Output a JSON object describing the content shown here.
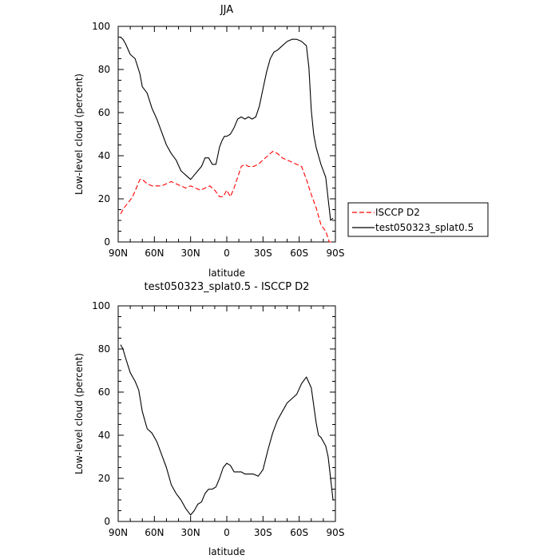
{
  "chart_data": [
    {
      "type": "line",
      "title": "JJA",
      "xlabel": "latitude",
      "ylabel": "Low-level cloud (percent)",
      "x_ticks": [
        "90N",
        "60N",
        "30N",
        "0",
        "30S",
        "60S",
        "90S"
      ],
      "xlim": [
        -90,
        90
      ],
      "ylim": [
        0,
        100
      ],
      "y_ticks": [
        "0",
        "20",
        "40",
        "60",
        "80",
        "100"
      ],
      "legend_position": "right",
      "series": [
        {
          "name": "ISCCP D2",
          "color": "#ff0000",
          "dash": "dashed",
          "x": [
            -88,
            -85,
            -82,
            -78,
            -75,
            -72,
            -70,
            -66,
            -62,
            -58,
            -54,
            -50,
            -46,
            -42,
            -38,
            -34,
            -30,
            -26,
            -22,
            -18,
            -14,
            -10,
            -6,
            -3,
            0,
            3,
            6,
            9,
            12,
            15,
            18,
            22,
            26,
            30,
            34,
            38,
            42,
            46,
            50,
            54,
            58,
            62,
            66,
            70,
            74,
            78,
            82,
            85,
            88
          ],
          "y": [
            13,
            16,
            18,
            21,
            25,
            29,
            29,
            27,
            26,
            26,
            26,
            27,
            28,
            27,
            26,
            25,
            26,
            25,
            24,
            25,
            26,
            24,
            21,
            21,
            24,
            21,
            25,
            30,
            35,
            36,
            35,
            35,
            36,
            38,
            40,
            42,
            41,
            39,
            38,
            37,
            36,
            35,
            29,
            22,
            16,
            8,
            5,
            0,
            0
          ]
        },
        {
          "name": "test050323_splat0.5",
          "color": "#000000",
          "dash": "solid",
          "x": [
            -88,
            -86,
            -84,
            -80,
            -76,
            -72,
            -70,
            -66,
            -62,
            -58,
            -54,
            -50,
            -46,
            -42,
            -38,
            -34,
            -30,
            -27,
            -24,
            -21,
            -18,
            -15,
            -12,
            -9,
            -6,
            -4,
            -2,
            0,
            3,
            6,
            9,
            12,
            15,
            18,
            21,
            24,
            27,
            30,
            33,
            36,
            39,
            42,
            46,
            50,
            54,
            58,
            62,
            66,
            68,
            70,
            72,
            74,
            76,
            78,
            80,
            82,
            84,
            86,
            88
          ],
          "y": [
            95,
            94,
            92,
            87,
            85,
            78,
            72,
            69,
            62,
            57,
            51,
            45,
            41,
            38,
            33,
            31,
            29,
            31,
            33,
            35,
            39,
            39,
            36,
            36,
            44,
            47,
            49,
            49,
            50,
            53,
            57,
            58,
            57,
            58,
            57,
            58,
            63,
            71,
            79,
            85,
            88,
            89,
            91,
            93,
            94,
            94,
            93,
            91,
            81,
            61,
            50,
            44,
            40,
            36,
            33,
            30,
            20,
            10,
            11
          ]
        }
      ]
    },
    {
      "type": "line",
      "title": "test050323_splat0.5 - ISCCP D2",
      "xlabel": "latitude",
      "ylabel": "Low-level cloud (percent)",
      "x_ticks": [
        "90N",
        "60N",
        "30N",
        "0",
        "30S",
        "60S",
        "90S"
      ],
      "xlim": [
        -90,
        90
      ],
      "ylim": [
        0,
        100
      ],
      "y_ticks": [
        "0",
        "20",
        "40",
        "60",
        "80",
        "100"
      ],
      "series": [
        {
          "color": "#000000",
          "dash": "solid",
          "x": [
            -88,
            -86,
            -84,
            -80,
            -76,
            -73,
            -70,
            -66,
            -62,
            -58,
            -54,
            -50,
            -46,
            -42,
            -38,
            -34,
            -30,
            -27,
            -24,
            -21,
            -18,
            -15,
            -12,
            -9,
            -6,
            -3,
            0,
            3,
            6,
            9,
            12,
            15,
            18,
            22,
            26,
            30,
            34,
            38,
            42,
            46,
            50,
            54,
            58,
            62,
            66,
            70,
            72,
            74,
            76,
            78,
            80,
            82,
            84,
            86,
            88
          ],
          "y": [
            82,
            80,
            76,
            69,
            65,
            61,
            51,
            43,
            41,
            37,
            31,
            25,
            17,
            13,
            10,
            6,
            3,
            5,
            8,
            9,
            13,
            15,
            15,
            16,
            20,
            25,
            27,
            26,
            23,
            23,
            23,
            22,
            22,
            22,
            21,
            24,
            33,
            41,
            47,
            51,
            55,
            57,
            59,
            64,
            67,
            62,
            54,
            46,
            40,
            39,
            37,
            35,
            30,
            20,
            10
          ]
        }
      ]
    }
  ]
}
